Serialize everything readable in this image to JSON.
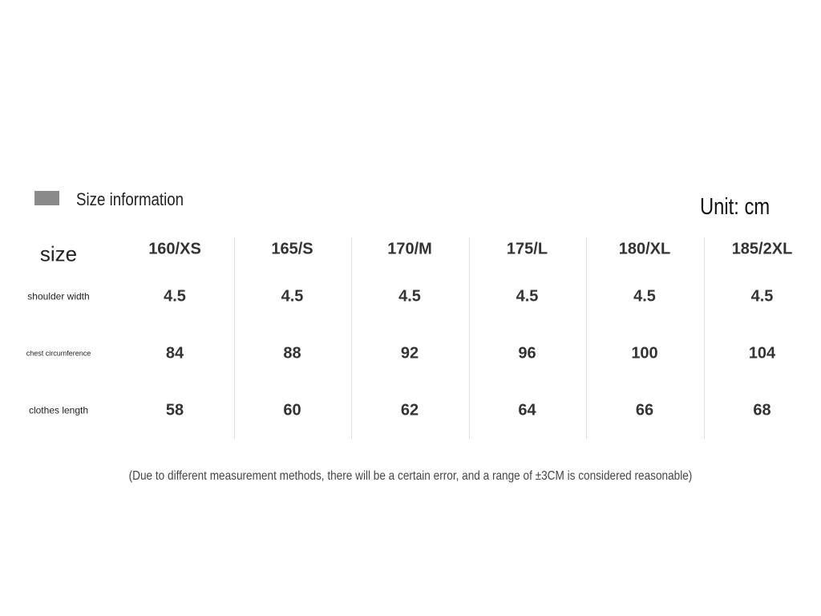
{
  "header": {
    "title": "Size information",
    "unit": "Unit: cm"
  },
  "table": {
    "corner": "size",
    "columns": [
      "160/XS",
      "165/S",
      "170/M",
      "175/L",
      "180/XL",
      "185/2XL"
    ],
    "rows": [
      {
        "label": "shoulder width",
        "cells": [
          4.5,
          4.5,
          4.5,
          4.5,
          4.5,
          4.5
        ]
      },
      {
        "label": "chest circumference",
        "cells": [
          84,
          88,
          92,
          96,
          100,
          104
        ]
      },
      {
        "label": "clothes length",
        "cells": [
          58,
          60,
          62,
          64,
          66,
          68
        ]
      }
    ]
  },
  "note": "(Due to different measurement methods, there will be a certain error, and a range of ±3CM is considered reasonable)"
}
